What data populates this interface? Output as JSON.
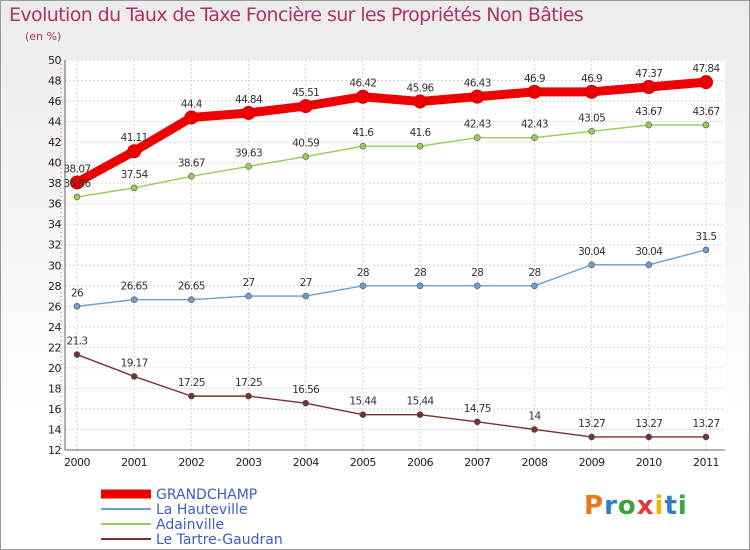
{
  "chart_data": {
    "type": "line",
    "title": "Evolution du Taux de Taxe Foncière sur les Propriétés Non Bâties",
    "subtitle": "(en %)",
    "xlabel": "",
    "ylabel": "",
    "x": [
      "2000",
      "2001",
      "2002",
      "2003",
      "2004",
      "2005",
      "2006",
      "2007",
      "2008",
      "2009",
      "2010",
      "2011"
    ],
    "ylim": [
      12,
      50
    ],
    "yticks": [
      12,
      14,
      16,
      18,
      20,
      22,
      24,
      26,
      28,
      30,
      32,
      34,
      36,
      38,
      40,
      42,
      44,
      46,
      48,
      50
    ],
    "grid": true,
    "legend_position": "bottom-left",
    "series": [
      {
        "name": "GRANDCHAMP",
        "color": "#ee0000",
        "values": [
          38.07,
          41.11,
          44.4,
          44.84,
          45.51,
          46.42,
          45.96,
          46.43,
          46.9,
          46.9,
          47.37,
          47.84
        ],
        "labels": [
          "38.07",
          "41.11",
          "44.4",
          "44.84",
          "45.51",
          "46.42",
          "45.96",
          "46.43",
          "46.9",
          "46.9",
          "47.37",
          "47.84"
        ]
      },
      {
        "name": "La Hauteville",
        "color": "#6a9fcf",
        "values": [
          26,
          26.65,
          26.65,
          27,
          27,
          28,
          28,
          28,
          28,
          30.04,
          30.04,
          31.5
        ],
        "labels": [
          "26",
          "26.65",
          "26.65",
          "27",
          "27",
          "28",
          "28",
          "28",
          "28",
          "30.04",
          "30.04",
          "31.5"
        ]
      },
      {
        "name": "Adainville",
        "color": "#99cc55",
        "values": [
          36.66,
          37.54,
          38.67,
          39.63,
          40.59,
          41.6,
          41.6,
          42.43,
          42.43,
          43.05,
          43.67,
          43.67
        ],
        "labels": [
          "36.66",
          "37.54",
          "38.67",
          "39.63",
          "40.59",
          "41.6",
          "41.6",
          "42.43",
          "42.43",
          "43.05",
          "43.67",
          "43.67"
        ]
      },
      {
        "name": "Le Tartre-Gaudran",
        "color": "#7a3030",
        "values": [
          21.3,
          19.17,
          17.25,
          17.25,
          16.56,
          15.44,
          15.44,
          14.75,
          14,
          13.27,
          13.27,
          13.27
        ],
        "labels": [
          "21.3",
          "19.17",
          "17.25",
          "17.25",
          "16.56",
          "15.44",
          "15.44",
          "14.75",
          "14",
          "13.27",
          "13.27",
          "13.27"
        ]
      }
    ]
  },
  "logo": {
    "text": "Proxiti"
  }
}
